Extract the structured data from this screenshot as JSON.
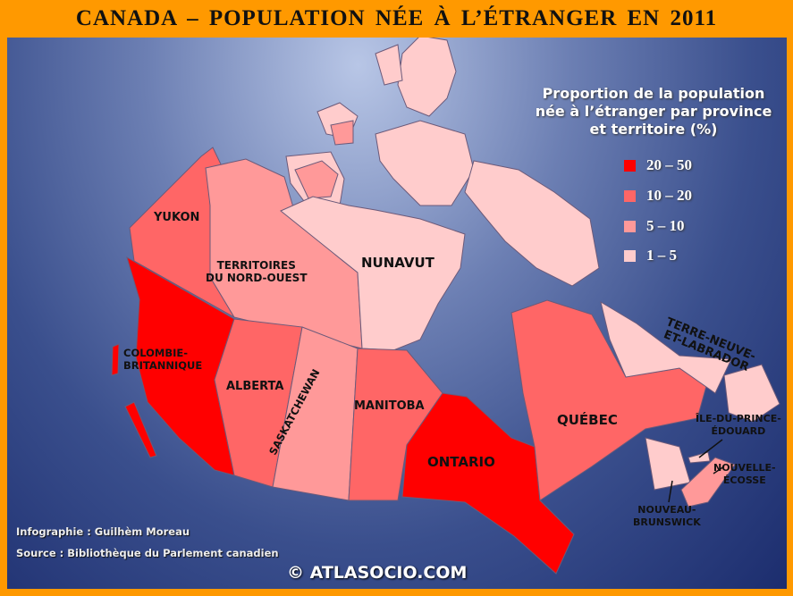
{
  "title": "CANADA  –  POPULATION  NÉE  À  L’ÉTRANGER  EN  2011",
  "legend": {
    "title_lines": [
      "Proportion de la population",
      "née à l’étranger par province",
      "et territoire (%)"
    ],
    "classes": [
      {
        "label": "20 – 50",
        "color": "#ff0000"
      },
      {
        "label": "10 – 20",
        "color": "#ff6666"
      },
      {
        "label": "5 – 10",
        "color": "#ff9999"
      },
      {
        "label": "1 – 5",
        "color": "#ffcccc"
      }
    ]
  },
  "regions": {
    "yukon": {
      "label": "YUKON",
      "class": "10 – 20"
    },
    "nwt": {
      "label_lines": [
        "TERRITOIRES",
        "DU NORD-OUEST"
      ],
      "class": "5 – 10"
    },
    "nunavut": {
      "label": "NUNAVUT",
      "class": "1 – 5"
    },
    "bc": {
      "label_lines": [
        "COLOMBIE-",
        "BRITANNIQUE"
      ],
      "class": "20 – 50"
    },
    "alberta": {
      "label": "ALBERTA",
      "class": "10 – 20"
    },
    "saskatchewan": {
      "label": "SASKATCHEWAN",
      "class": "5 – 10"
    },
    "manitoba": {
      "label": "MANITOBA",
      "class": "10 – 20"
    },
    "ontario": {
      "label": "ONTARIO",
      "class": "20 – 50"
    },
    "quebec": {
      "label": "QUÉBEC",
      "class": "10 – 20"
    },
    "nl": {
      "label_lines": [
        "TERRE-NEUVE-",
        "ET-LABRADOR"
      ],
      "class": "1 – 5"
    },
    "pei": {
      "label_lines": [
        "ÎLE-DU-PRINCE-",
        "ÉDOUARD"
      ],
      "class": "1 – 5"
    },
    "ns": {
      "label_lines": [
        "NOUVELLE-",
        "ÉCOSSE"
      ],
      "class": "5 – 10"
    },
    "nb": {
      "label_lines": [
        "NOUVEAU-",
        "BRUNSWICK"
      ],
      "class": "1 – 5"
    }
  },
  "credits": {
    "author": "Infographie  : Guilhèm  Moreau",
    "source": "Source : Bibliothèque  du Parlement  canadien",
    "copyright": "© ATLASOCIO.COM"
  }
}
